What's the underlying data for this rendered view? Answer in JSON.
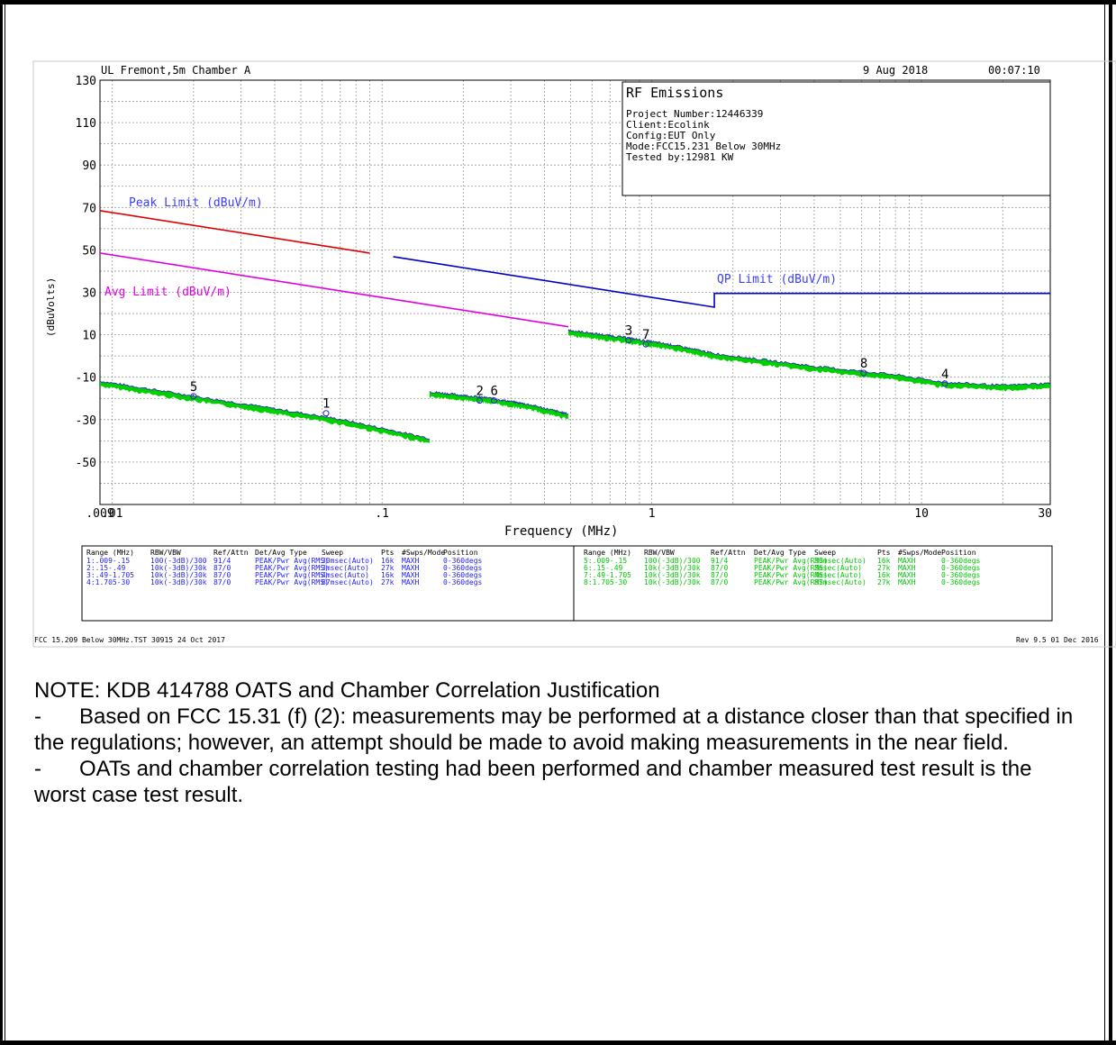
{
  "header": {
    "site": "UL Fremont,5m Chamber A",
    "date": "9 Aug 2018",
    "time": "00:07:10"
  },
  "info_box": {
    "title": "RF Emissions",
    "lines": [
      "Project Number:12446339",
      "Client:Ecolink",
      "Config:EUT Only",
      "Mode:FCC15.231 Below 30MHz",
      "Tested by:12981 KW"
    ]
  },
  "chart_data": {
    "type": "line",
    "title": "RF Emissions",
    "xlabel": "Frequency (MHz)",
    "ylabel": "(dBuVolts)",
    "xscale": "log",
    "xlim": [
      0.009,
      30
    ],
    "ylim": [
      -70,
      130
    ],
    "x_ticks": [
      ".009",
      ".01",
      ".1",
      "1",
      "10",
      "30"
    ],
    "y_ticks": [
      130,
      110,
      90,
      70,
      50,
      30,
      10,
      -10,
      -30,
      -50
    ],
    "grid": true,
    "limits": [
      {
        "name": "Peak Limit (dBuV/m)",
        "color": "#e00000",
        "x": [
          0.009,
          0.09
        ],
        "y": [
          68.5,
          48.5
        ]
      },
      {
        "name": "Avg Limit (dBuV/m)",
        "color": "#e000e0",
        "x": [
          0.009,
          0.09,
          0.49
        ],
        "y": [
          48.5,
          28.5,
          13.8
        ]
      },
      {
        "name": "QP Limit (dBuV/m)",
        "color": "#0000c8",
        "x": [
          0.11,
          1.705,
          1.705,
          30
        ],
        "y": [
          46.8,
          23,
          29.5,
          29.5
        ]
      }
    ],
    "traces": [
      {
        "range": "1",
        "color": "#00d000",
        "x": [
          0.009,
          0.02,
          0.04,
          0.07,
          0.15
        ],
        "y": [
          -13,
          -20,
          -26,
          -31,
          -40
        ]
      },
      {
        "range": "2",
        "color": "#00d000",
        "x": [
          0.15,
          0.25,
          0.35,
          0.49
        ],
        "y": [
          -18,
          -21,
          -24,
          -28.5
        ]
      },
      {
        "range": "3",
        "color": "#00d000",
        "x": [
          0.49,
          0.8,
          1.2,
          1.705
        ],
        "y": [
          11,
          7.5,
          4,
          0
        ]
      },
      {
        "range": "4",
        "color": "#00d000",
        "x": [
          1.705,
          4,
          8,
          12,
          20,
          30
        ],
        "y": [
          0,
          -6,
          -10,
          -13.5,
          -15,
          -14
        ]
      }
    ],
    "markers": [
      {
        "label": "1",
        "x": 0.062,
        "y": -27
      },
      {
        "label": "2",
        "x": 0.23,
        "y": -21
      },
      {
        "label": "6",
        "x": 0.26,
        "y": -21
      },
      {
        "label": "3",
        "x": 0.82,
        "y": 7.5
      },
      {
        "label": "7",
        "x": 0.95,
        "y": 5.5
      },
      {
        "label": "5",
        "x": 0.02,
        "y": -19
      },
      {
        "label": "8",
        "x": 6.1,
        "y": -8
      },
      {
        "label": "4",
        "x": 12.2,
        "y": -13
      }
    ]
  },
  "settings_table": {
    "headers": [
      "Range (MHz)",
      "RBW/VBW",
      "Ref/Attn",
      "Det/Avg Type",
      "Sweep",
      "Pts",
      "#Swps/Mode",
      "Position"
    ],
    "left_rows": [
      [
        "1:.009-.15",
        "100(-3dB)/300",
        "91/4",
        "PEAK/Pwr Avg(RMS)",
        "30msec(Auto)",
        "16k",
        "MAXH",
        "0-360degs"
      ],
      [
        "2:.15-.49",
        "10k(-3dB)/30k",
        "87/0",
        "PEAK/Pwr Avg(RMS)",
        "3msec(Auto)",
        "27k",
        "MAXH",
        "0-360degs"
      ],
      [
        "3:.49-1.705",
        "10k(-3dB)/30k",
        "87/0",
        "PEAK/Pwr Avg(RMS)",
        "4msec(Auto)",
        "16k",
        "MAXH",
        "0-360degs"
      ],
      [
        "4:1.705-30",
        "10k(-3dB)/30k",
        "87/0",
        "PEAK/Pwr Avg(RMS)",
        "87msec(Auto)",
        "27k",
        "MAXH",
        "0-360degs"
      ]
    ],
    "right_rows": [
      [
        "5:.009-.15",
        "100(-3dB)/300",
        "91/4",
        "PEAK/Pwr Avg(RMS)",
        "30msec(Auto)",
        "16k",
        "MAXH",
        "0-360degs"
      ],
      [
        "6:.15-.49",
        "10k(-3dB)/30k",
        "87/0",
        "PEAK/Pwr Avg(RMS)",
        "3msec(Auto)",
        "27k",
        "MAXH",
        "0-360degs"
      ],
      [
        "7:.49-1.705",
        "10k(-3dB)/30k",
        "87/0",
        "PEAK/Pwr Avg(RMS)",
        "4msec(Auto)",
        "16k",
        "MAXH",
        "0-360degs"
      ],
      [
        "8:1.705-30",
        "10k(-3dB)/30k",
        "87/0",
        "PEAK/Pwr Avg(RMS)",
        "87msec(Auto)",
        "27k",
        "MAXH",
        "0-360degs"
      ]
    ]
  },
  "footer": {
    "left": "FCC 15.209 Below 30MHz.TST 30915 24 Oct 2017",
    "right": "Rev 9.5 01 Dec 2016"
  },
  "note": {
    "heading": "NOTE: KDB 414788 OATS and Chamber Correlation Justification",
    "bullets": [
      "Based on FCC 15.31 (f) (2): measurements may be performed at a distance closer than that specified in the regulations; however, an attempt should be made to avoid making measurements in the near field.",
      "OATs and chamber correlation testing had been performed and chamber measured test result is the worst case test result."
    ],
    "bullet_char": "-"
  }
}
